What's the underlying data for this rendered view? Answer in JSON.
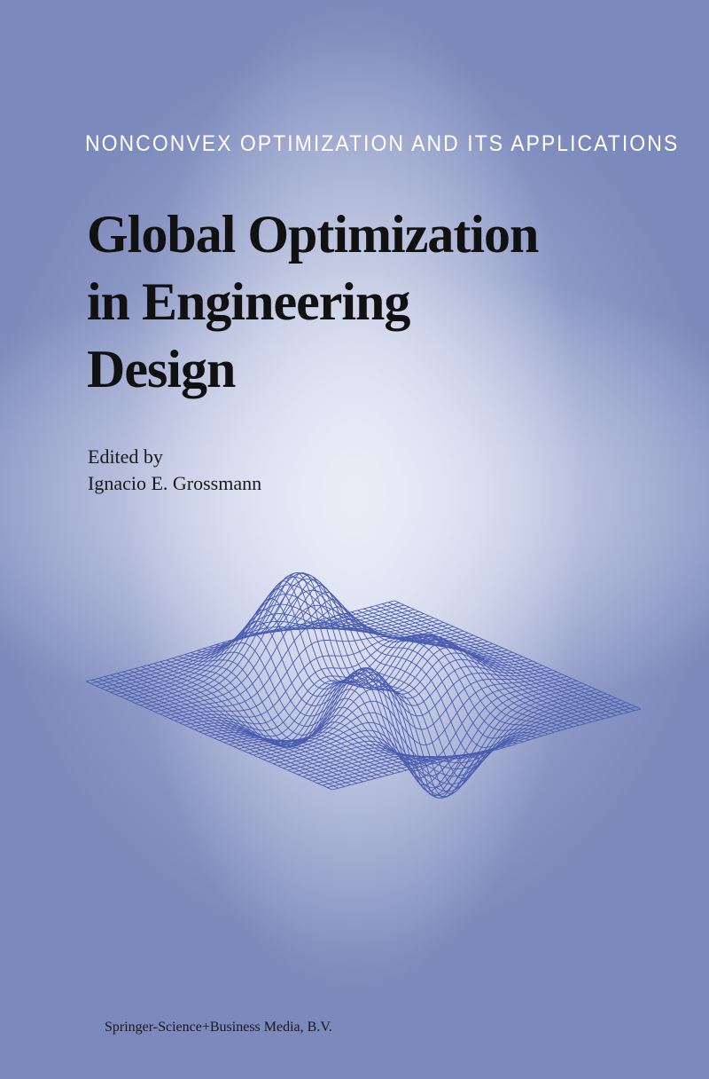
{
  "cover": {
    "series": "NONCONVEX OPTIMIZATION AND ITS APPLICATIONS",
    "title_lines": [
      "Global Optimization",
      "in Engineering",
      "Design"
    ],
    "edited_by_label": "Edited by",
    "editor": "Ignacio E. Grossmann",
    "publisher": "Springer-Science+Business Media, B.V."
  },
  "illustration": {
    "type": "wireframe surface plot",
    "line_color": "#4a5cb0"
  },
  "colors": {
    "background": "#7b89bc",
    "highlight": "#e6e9f5"
  }
}
